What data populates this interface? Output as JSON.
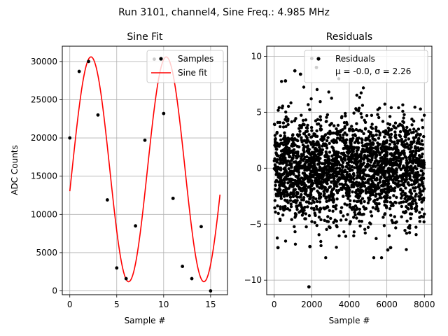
{
  "suptitle": "Run 3101, channel4, Sine Freq.: 4.985 MHz",
  "chart_data": [
    {
      "type": "scatter+line",
      "title": "Sine Fit",
      "xlabel": "Sample #",
      "ylabel": "ADC Counts",
      "xlim": [
        -0.8,
        16.8
      ],
      "ylim": [
        -500,
        32000
      ],
      "xticks": [
        0,
        5,
        10,
        15
      ],
      "yticks": [
        0,
        5000,
        10000,
        15000,
        20000,
        25000,
        30000
      ],
      "grid": true,
      "legend_position": "upper right",
      "legend": [
        {
          "label": "Samples",
          "marker": "dot",
          "color": "#000000"
        },
        {
          "label": "Sine fit",
          "marker": "line",
          "color": "#ff0000"
        }
      ],
      "samples": {
        "name": "Samples",
        "x": [
          0,
          1,
          2,
          3,
          4,
          5,
          6,
          7,
          8,
          9,
          10,
          11,
          12,
          13,
          14,
          15
        ],
        "y": [
          20000,
          28700,
          30000,
          23000,
          11900,
          3000,
          1600,
          8500,
          19700,
          30300,
          23200,
          12100,
          3200,
          1600,
          8400,
          0
        ]
      },
      "fit": {
        "name": "Sine fit",
        "offset": 15900,
        "amplitude": 14700,
        "period": 8.02,
        "phase": 0.25,
        "x_range": [
          0,
          16
        ],
        "color": "#ff0000"
      }
    },
    {
      "type": "scatter",
      "title": "Residuals",
      "xlabel": "Sample #",
      "ylabel": "",
      "xlim": [
        -400,
        8400
      ],
      "ylim": [
        -11.3,
        10.9
      ],
      "xticks": [
        0,
        2000,
        4000,
        6000,
        8000
      ],
      "yticks": [
        -10,
        -5,
        0,
        5,
        10
      ],
      "grid": true,
      "legend_position": "upper right",
      "legend": [
        {
          "label": "Residuals",
          "marker": "dot",
          "color": "#000000"
        },
        {
          "label": "μ = -0.0, σ = 2.26",
          "marker": "none",
          "color": "#000000"
        }
      ],
      "residuals": {
        "n_points": 8000,
        "x_range": [
          0,
          8000
        ],
        "mean": -0.0,
        "std": 2.26,
        "outliers": [
          {
            "x": 1850,
            "y": -10.6
          },
          {
            "x": 2000,
            "y": 9.8
          },
          {
            "x": 2250,
            "y": 9.0
          },
          {
            "x": 1100,
            "y": 8.7
          },
          {
            "x": 600,
            "y": 7.8
          },
          {
            "x": 200,
            "y": -7.1
          },
          {
            "x": 1900,
            "y": -7.0
          },
          {
            "x": 6050,
            "y": -7.3
          },
          {
            "x": 6200,
            "y": -7.1
          },
          {
            "x": 1400,
            "y": 8.4
          }
        ]
      }
    }
  ]
}
